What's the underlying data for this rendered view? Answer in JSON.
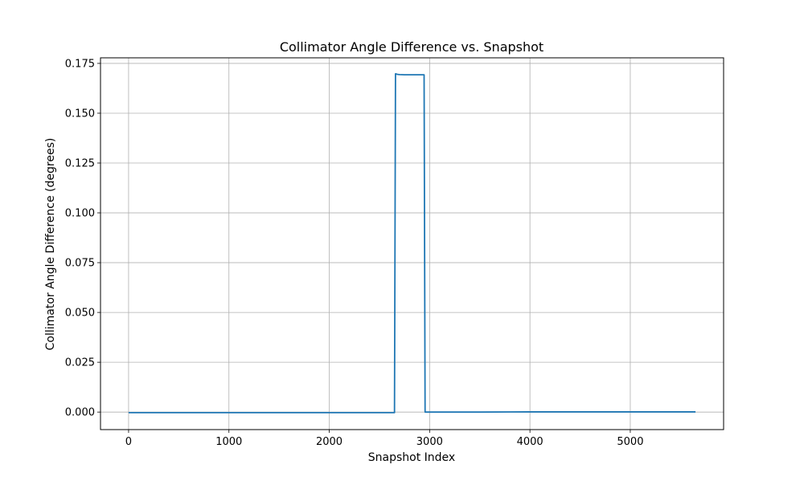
{
  "chart_data": {
    "type": "line",
    "title": "Collimator Angle Difference vs. Snapshot",
    "xlabel": "Snapshot Index",
    "ylabel": "Collimator Angle Difference (degrees)",
    "xlim": [
      -280,
      5930
    ],
    "ylim": [
      -0.0088,
      0.1778
    ],
    "xticks": [
      0,
      1000,
      2000,
      3000,
      4000,
      5000
    ],
    "xtick_labels": [
      "0",
      "1000",
      "2000",
      "3000",
      "4000",
      "5000"
    ],
    "yticks": [
      0.0,
      0.025,
      0.05,
      0.075,
      0.1,
      0.125,
      0.15,
      0.175
    ],
    "ytick_labels": [
      "0.000",
      "0.025",
      "0.050",
      "0.075",
      "0.100",
      "0.125",
      "0.150",
      "0.175"
    ],
    "grid": true,
    "series": [
      {
        "color": "#1f77b4",
        "x": [
          0,
          2650,
          2660,
          2680,
          2700,
          2750,
          2800,
          2850,
          2900,
          2945,
          2955,
          3500,
          4000,
          4500,
          5000,
          5650
        ],
        "y": [
          -0.0003,
          -0.0003,
          0.1698,
          0.1695,
          0.1694,
          0.1693,
          0.1693,
          0.1693,
          0.1693,
          0.1693,
          0.0,
          0.0,
          0.0001,
          0.0001,
          0.0001,
          0.0001
        ]
      }
    ]
  }
}
